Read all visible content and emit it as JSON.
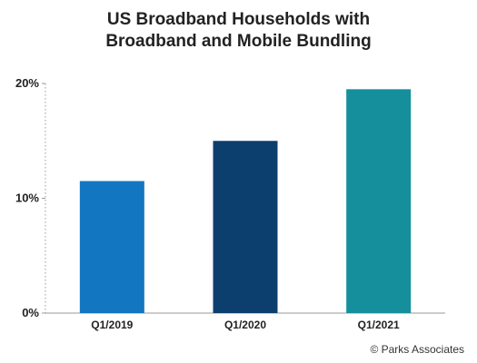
{
  "chart_data": {
    "type": "bar",
    "title_lines": [
      "US Broadband Households with",
      "Broadband and Mobile Bundling"
    ],
    "categories": [
      "Q1/2019",
      "Q1/2020",
      "Q1/2021"
    ],
    "values": [
      11.5,
      15.0,
      19.5
    ],
    "colors": [
      "#1276c0",
      "#0d3f6e",
      "#158f9c"
    ],
    "unit": "%",
    "ylim": [
      0,
      20
    ],
    "yticks": [
      0,
      10,
      20
    ],
    "ytick_labels": [
      "0%",
      "10%",
      "20%"
    ],
    "xlabel": "",
    "ylabel": "",
    "grid": false
  },
  "credit": "© Parks Associates"
}
